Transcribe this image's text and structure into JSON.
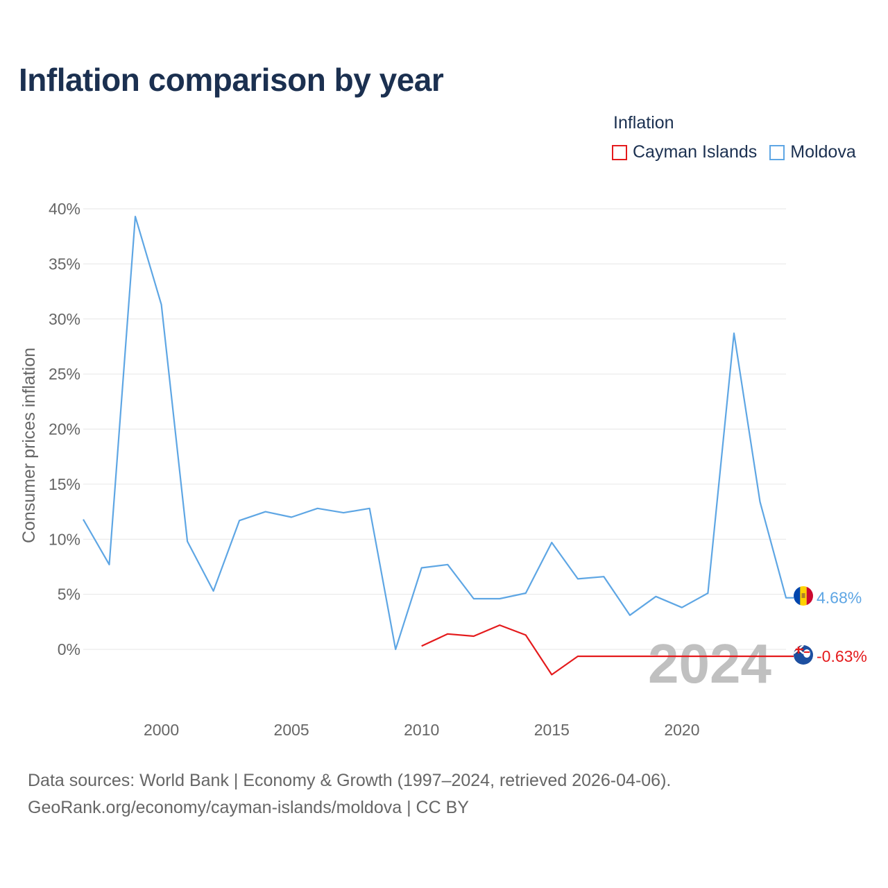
{
  "title": "Inflation comparison by year",
  "legend": {
    "title": "Inflation",
    "items": [
      {
        "name": "Cayman Islands",
        "color": "#e41a1c"
      },
      {
        "name": "Moldova",
        "color": "#5ea6e4"
      }
    ]
  },
  "sources": {
    "line1": "Data sources: World Bank | Economy & Growth (1997–2024, retrieved 2026-04-06).",
    "line2": "GeoRank.org/economy/cayman-islands/moldova | CC BY"
  },
  "chart_data": {
    "type": "line",
    "title": "Inflation comparison by year",
    "xlabel": "",
    "ylabel": "Consumer prices inflation",
    "xlim": [
      1997,
      2024
    ],
    "ylim": [
      -5,
      40
    ],
    "x_ticks": [
      2000,
      2005,
      2010,
      2015,
      2020
    ],
    "y_ticks": [
      0,
      5,
      10,
      15,
      20,
      25,
      30,
      35,
      40
    ],
    "y_tick_labels": [
      "0%",
      "5%",
      "10%",
      "15%",
      "20%",
      "25%",
      "30%",
      "35%",
      "40%"
    ],
    "grid": true,
    "year_label": "2024",
    "series": [
      {
        "name": "Moldova",
        "color": "#5ea6e4",
        "x": [
          1997,
          1998,
          1999,
          2000,
          2001,
          2002,
          2003,
          2004,
          2005,
          2006,
          2007,
          2008,
          2009,
          2010,
          2011,
          2012,
          2013,
          2014,
          2015,
          2016,
          2017,
          2018,
          2019,
          2020,
          2021,
          2022,
          2023,
          2024
        ],
        "values": [
          11.8,
          7.7,
          39.3,
          31.3,
          9.8,
          5.3,
          11.7,
          12.5,
          12.0,
          12.8,
          12.4,
          12.8,
          0.0,
          7.4,
          7.7,
          4.6,
          4.6,
          5.1,
          9.7,
          6.4,
          6.6,
          3.1,
          4.8,
          3.8,
          5.1,
          28.7,
          13.4,
          4.68
        ],
        "end_label": "4.68%"
      },
      {
        "name": "Cayman Islands",
        "color": "#e41a1c",
        "x": [
          2010,
          2011,
          2012,
          2013,
          2014,
          2015,
          2016,
          2017,
          2018,
          2019,
          2020,
          2021,
          2022,
          2023,
          2024
        ],
        "values": [
          0.3,
          1.4,
          1.2,
          2.2,
          1.3,
          -2.3,
          -0.63,
          -0.63,
          -0.63,
          -0.63,
          -0.63,
          -0.63,
          -0.63,
          -0.63,
          -0.63
        ],
        "end_label": "-0.63%"
      }
    ]
  }
}
